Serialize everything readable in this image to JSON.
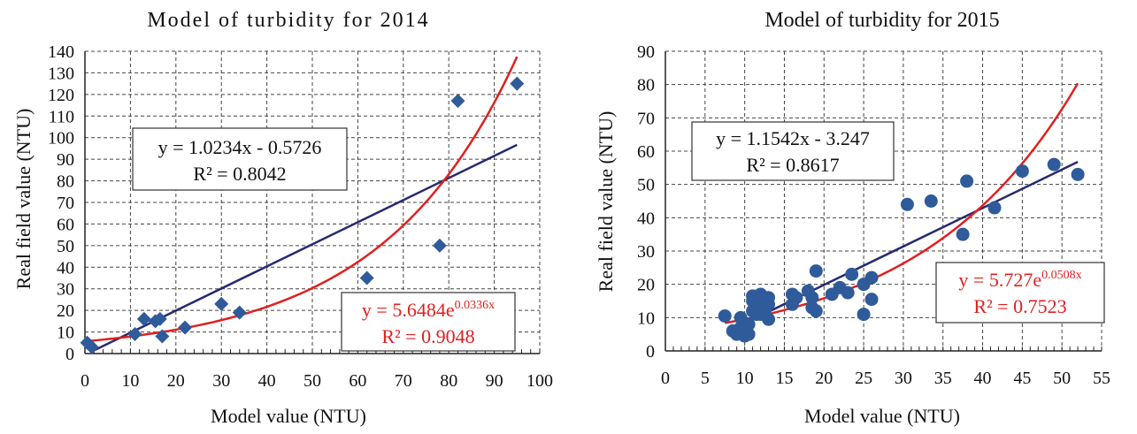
{
  "chart_data": [
    {
      "type": "scatter",
      "title": "Model of turbidity for 2014",
      "xlabel": "Model value (NTU)",
      "ylabel": "Real field value (NTU)",
      "xlim": [
        0,
        100
      ],
      "ylim": [
        0,
        140
      ],
      "xticks": [
        "0",
        "10",
        "20",
        "30",
        "40",
        "50",
        "60",
        "70",
        "80",
        "90",
        "100"
      ],
      "yticks": [
        "0",
        "10",
        "20",
        "30",
        "40",
        "50",
        "60",
        "70",
        "80",
        "90",
        "100",
        "110",
        "120",
        "130",
        "140"
      ],
      "grid": true,
      "marker": "diamond",
      "marker_color": "#2f5b9a",
      "points": [
        [
          0.5,
          5
        ],
        [
          1.5,
          3
        ],
        [
          11,
          9
        ],
        [
          13,
          16
        ],
        [
          15.5,
          15
        ],
        [
          16.5,
          16
        ],
        [
          17,
          8
        ],
        [
          22,
          12
        ],
        [
          30,
          23
        ],
        [
          34,
          19
        ],
        [
          62,
          35
        ],
        [
          78,
          50
        ],
        [
          82,
          117
        ],
        [
          95,
          125
        ]
      ],
      "linear_fit": {
        "label": "y = 1.0234x - 0.5726",
        "r2_label": "R² = 0.8042",
        "slope": 1.0234,
        "intercept": -0.5726,
        "color": "#262b6e"
      },
      "exp_fit": {
        "label_base": "y = 5.6484e",
        "label_exp": "0.0336x",
        "r2_label": "R² = 0.9048",
        "a": 5.6484,
        "b": 0.0336,
        "color": "#e02020"
      }
    },
    {
      "type": "scatter",
      "title": "Model of turbidity for 2015",
      "xlabel": "Model value (NTU)",
      "ylabel": "Real field value (NTU)",
      "xlim": [
        0,
        55
      ],
      "ylim": [
        0,
        90
      ],
      "xticks": [
        "0",
        "5",
        "10",
        "15",
        "20",
        "25",
        "30",
        "35",
        "40",
        "45",
        "50",
        "55"
      ],
      "yticks": [
        "0",
        "10",
        "20",
        "30",
        "40",
        "50",
        "60",
        "70",
        "80",
        "90"
      ],
      "grid": true,
      "marker": "circle",
      "marker_color": "#2f5b9a",
      "points": [
        [
          7.5,
          10.5
        ],
        [
          8.5,
          6
        ],
        [
          9,
          5
        ],
        [
          9.5,
          10
        ],
        [
          9.5,
          7
        ],
        [
          10,
          6
        ],
        [
          10,
          4.5
        ],
        [
          10.5,
          8
        ],
        [
          10.5,
          5
        ],
        [
          11,
          12
        ],
        [
          11,
          15
        ],
        [
          11,
          16.5
        ],
        [
          11.5,
          16
        ],
        [
          11.5,
          11
        ],
        [
          12,
          17
        ],
        [
          12,
          13
        ],
        [
          12,
          11
        ],
        [
          12.5,
          15
        ],
        [
          12.5,
          12
        ],
        [
          13,
          16
        ],
        [
          13,
          9.5
        ],
        [
          13,
          14
        ],
        [
          16,
          17
        ],
        [
          16,
          14
        ],
        [
          16.5,
          16
        ],
        [
          18,
          18
        ],
        [
          18.5,
          13
        ],
        [
          18.5,
          16
        ],
        [
          19,
          12
        ],
        [
          19,
          24
        ],
        [
          21,
          17
        ],
        [
          22,
          19
        ],
        [
          23,
          17.5
        ],
        [
          23.5,
          23
        ],
        [
          25,
          11
        ],
        [
          25,
          20
        ],
        [
          26,
          15.5
        ],
        [
          26,
          22
        ],
        [
          30.5,
          44
        ],
        [
          33.5,
          45
        ],
        [
          37.5,
          35
        ],
        [
          38,
          51
        ],
        [
          41.5,
          43
        ],
        [
          45,
          54
        ],
        [
          49,
          56
        ],
        [
          52,
          53
        ]
      ],
      "linear_fit": {
        "label": "y = 1.1542x - 3.247",
        "r2_label": "R² = 0.8617",
        "slope": 1.1542,
        "intercept": -3.247,
        "color": "#262b6e"
      },
      "exp_fit": {
        "label_base": "y = 5.727e",
        "label_exp": "0.0508x",
        "r2_label": "R² = 0.7523",
        "a": 5.727,
        "b": 0.0508,
        "color": "#e02020"
      }
    }
  ]
}
